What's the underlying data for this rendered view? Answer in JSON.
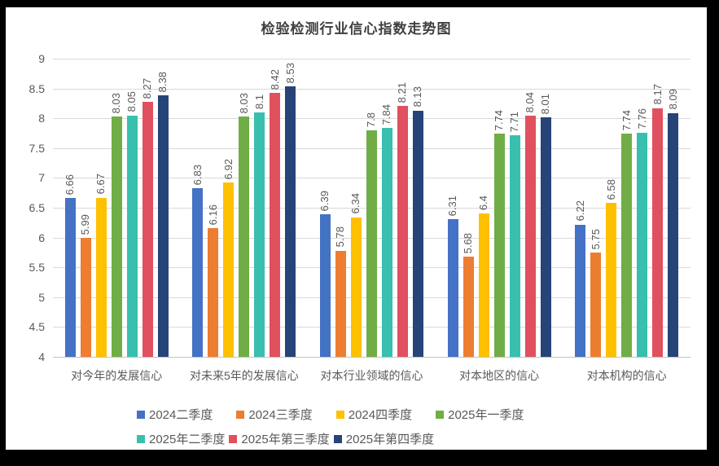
{
  "title": "检验检测行业信心指数走势图",
  "chart_data": {
    "type": "bar",
    "title": "检验检测行业信心指数走势图",
    "categories": [
      "对今年的发展信心",
      "对未来5年的发展信心",
      "对本行业领域的信心",
      "对本地区的信心",
      "对本机构的信心"
    ],
    "series": [
      {
        "name": "2024二季度",
        "color": "#4472C4",
        "values": [
          6.66,
          6.83,
          6.39,
          6.31,
          6.22
        ]
      },
      {
        "name": "2024三季度",
        "color": "#ED7D31",
        "values": [
          5.99,
          6.16,
          5.78,
          5.68,
          5.75
        ]
      },
      {
        "name": "2024四季度",
        "color": "#FFC000",
        "values": [
          6.67,
          6.92,
          6.34,
          6.4,
          6.58
        ]
      },
      {
        "name": "2025年一季度",
        "color": "#70AD47",
        "values": [
          8.03,
          8.03,
          7.8,
          7.74,
          7.74
        ]
      },
      {
        "name": "2025年二季度",
        "color": "#38BFAE",
        "values": [
          8.05,
          8.1,
          7.84,
          7.71,
          7.76
        ]
      },
      {
        "name": "2025年第三季度",
        "color": "#E0505F",
        "values": [
          8.27,
          8.42,
          8.21,
          8.04,
          8.17
        ]
      },
      {
        "name": "2025年第四季度",
        "color": "#264478",
        "values": [
          8.38,
          8.53,
          8.13,
          8.01,
          8.09
        ]
      }
    ],
    "ylim": [
      4,
      9
    ],
    "ytick_step": 0.5,
    "yticks": [
      "9",
      "8.5",
      "8",
      "7.5",
      "7",
      "6.5",
      "6",
      "5.5",
      "5",
      "4.5",
      "4"
    ],
    "xlabel": "",
    "ylabel": "",
    "grid": true,
    "data_labels": true,
    "data_label_rotation": 90,
    "legend_position": "bottom",
    "legend_rows": [
      [
        "2024二季度",
        "2024三季度",
        "2024四季度",
        "2025年一季度"
      ],
      [
        "2025年二季度",
        "2025年第三季度",
        "2025年第四季度"
      ]
    ],
    "colors": {
      "gridline": "#d9d9d9",
      "axis_text": "#595959",
      "title_text": "#404040"
    }
  }
}
